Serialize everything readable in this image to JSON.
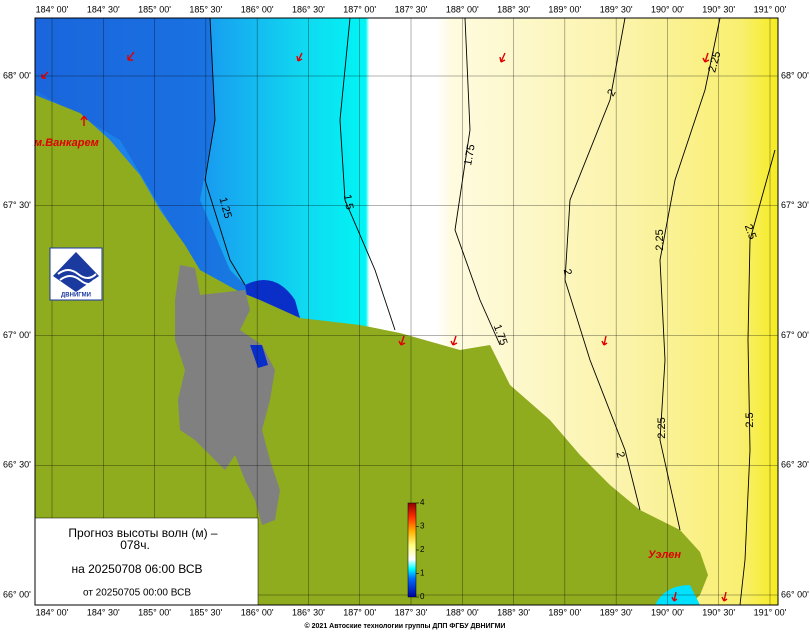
{
  "map": {
    "longitude_labels": [
      "184° 00'",
      "184° 30'",
      "185° 00'",
      "185° 30'",
      "186° 00'",
      "186° 30'",
      "187° 00'",
      "187° 30'",
      "188° 00'",
      "188° 30'",
      "189° 00'",
      "189° 30'",
      "190° 00'",
      "190° 30'",
      "191° 00'"
    ],
    "latitude_labels": [
      "68° 00'",
      "67° 30'",
      "67° 00'",
      "66° 30'",
      "66° 00'"
    ],
    "contour_labels": [
      "1.25",
      "1.5",
      "1.75",
      "1.75",
      "2",
      "2",
      "2",
      "2.25",
      "2.25",
      "2.25",
      "2.5",
      "2.5"
    ],
    "places": [
      "м.Ванкарем",
      "Уэлен"
    ],
    "logo": "ДВНИГМИ"
  },
  "legend": {
    "title": "Прогноз высоты волн (м) –",
    "lead": "078ч.",
    "valid": "на 20250708 06:00 ВСВ",
    "issued": "от 20250705 00:00 ВСВ"
  },
  "colorbar": {
    "ticks": [
      0,
      1,
      2,
      3,
      4
    ]
  },
  "footer": "© 2021 Автоские технологии группы ДПП ФГБУ ДВНИГМИ"
}
